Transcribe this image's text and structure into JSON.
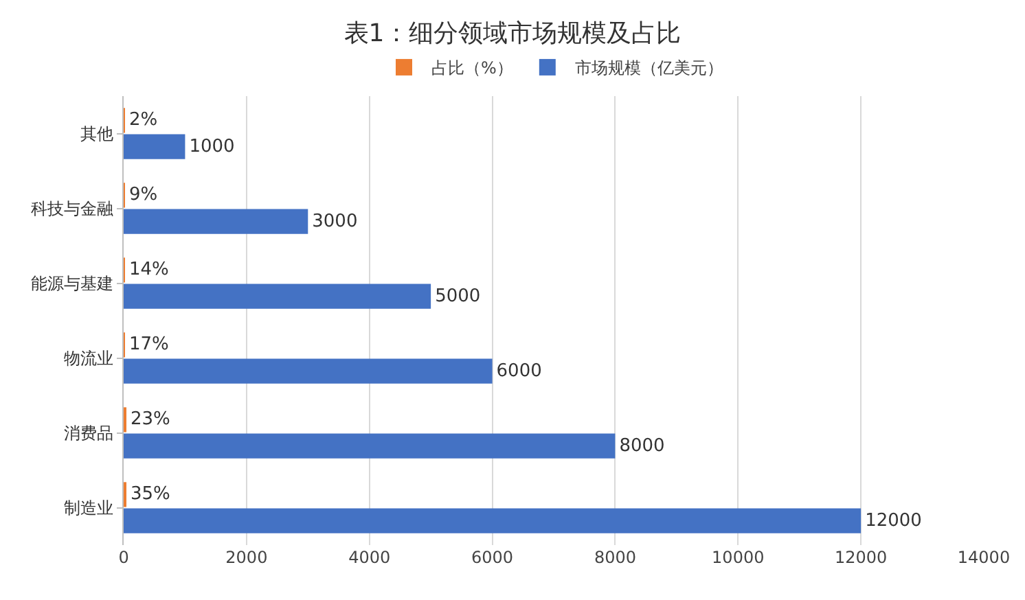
{
  "chart_data": {
    "type": "bar",
    "orientation": "horizontal",
    "title": "表1：细分领域市场规模及占比",
    "categories": [
      "其他",
      "科技与金融",
      "能源与基建",
      "物流业",
      "消费品",
      "制造业"
    ],
    "series": [
      {
        "name": "占比（%）",
        "color": "#ed7d31",
        "values": [
          2,
          9,
          14,
          17,
          23,
          35
        ],
        "value_labels": [
          "2%",
          "9%",
          "14%",
          "17%",
          "23%",
          "35%"
        ]
      },
      {
        "name": "市场规模（亿美元）",
        "color": "#4472c4",
        "values": [
          1000,
          3000,
          5000,
          6000,
          8000,
          12000
        ],
        "value_labels": [
          "1000",
          "3000",
          "5000",
          "6000",
          "8000",
          "12000"
        ]
      }
    ],
    "xlim": [
      0,
      14000
    ],
    "xticks": [
      0,
      2000,
      4000,
      6000,
      8000,
      10000,
      12000,
      14000
    ],
    "grid": "x",
    "legend": "top"
  }
}
